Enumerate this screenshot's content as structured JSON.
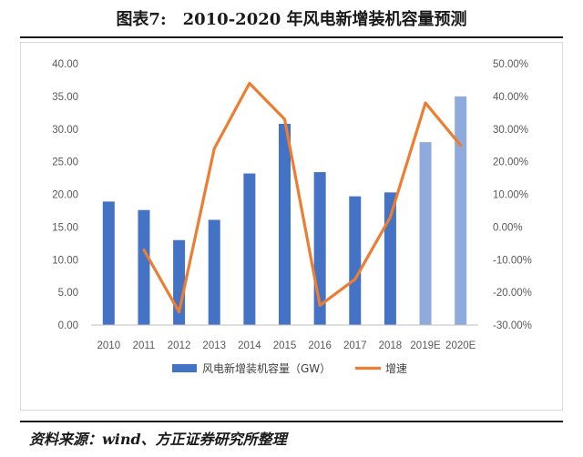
{
  "header": {
    "figure_title": "图表7:　2010-2020 年风电新增装机容量预测"
  },
  "footer": {
    "source": "资料来源：wind、方正证券研究所整理"
  },
  "chart_data": {
    "type": "bar",
    "categories": [
      "2010",
      "2011",
      "2012",
      "2013",
      "2014",
      "2015",
      "2016",
      "2017",
      "2018",
      "2019E",
      "2020E"
    ],
    "series": [
      {
        "name": "风电新增装机容量（GW）",
        "type": "bar",
        "axis": "left",
        "values": [
          18.9,
          17.6,
          13.0,
          16.1,
          23.2,
          30.8,
          23.4,
          19.7,
          20.3,
          28.0,
          35.0
        ],
        "colors": [
          "#4472C4",
          "#4472C4",
          "#4472C4",
          "#4472C4",
          "#4472C4",
          "#4472C4",
          "#4472C4",
          "#4472C4",
          "#4472C4",
          "#8FAADC",
          "#8FAADC"
        ]
      },
      {
        "name": "增速",
        "type": "line",
        "axis": "right",
        "values": [
          null,
          -7,
          -26,
          24,
          44,
          33,
          -24,
          -16,
          3,
          38,
          25
        ],
        "color": "#ED7D31"
      }
    ],
    "y_left": {
      "min": 0,
      "max": 40,
      "step": 5,
      "tick_labels": [
        "0.00",
        "5.00",
        "10.00",
        "15.00",
        "20.00",
        "25.00",
        "30.00",
        "35.00",
        "40.00"
      ]
    },
    "y_right": {
      "min": -30,
      "max": 50,
      "step": 10,
      "tick_labels": [
        "-30.00%",
        "-20.00%",
        "-10.00%",
        "0.00%",
        "10.00%",
        "20.00%",
        "30.00%",
        "40.00%",
        "50.00%"
      ]
    },
    "grid": false,
    "legend_position": "bottom"
  }
}
